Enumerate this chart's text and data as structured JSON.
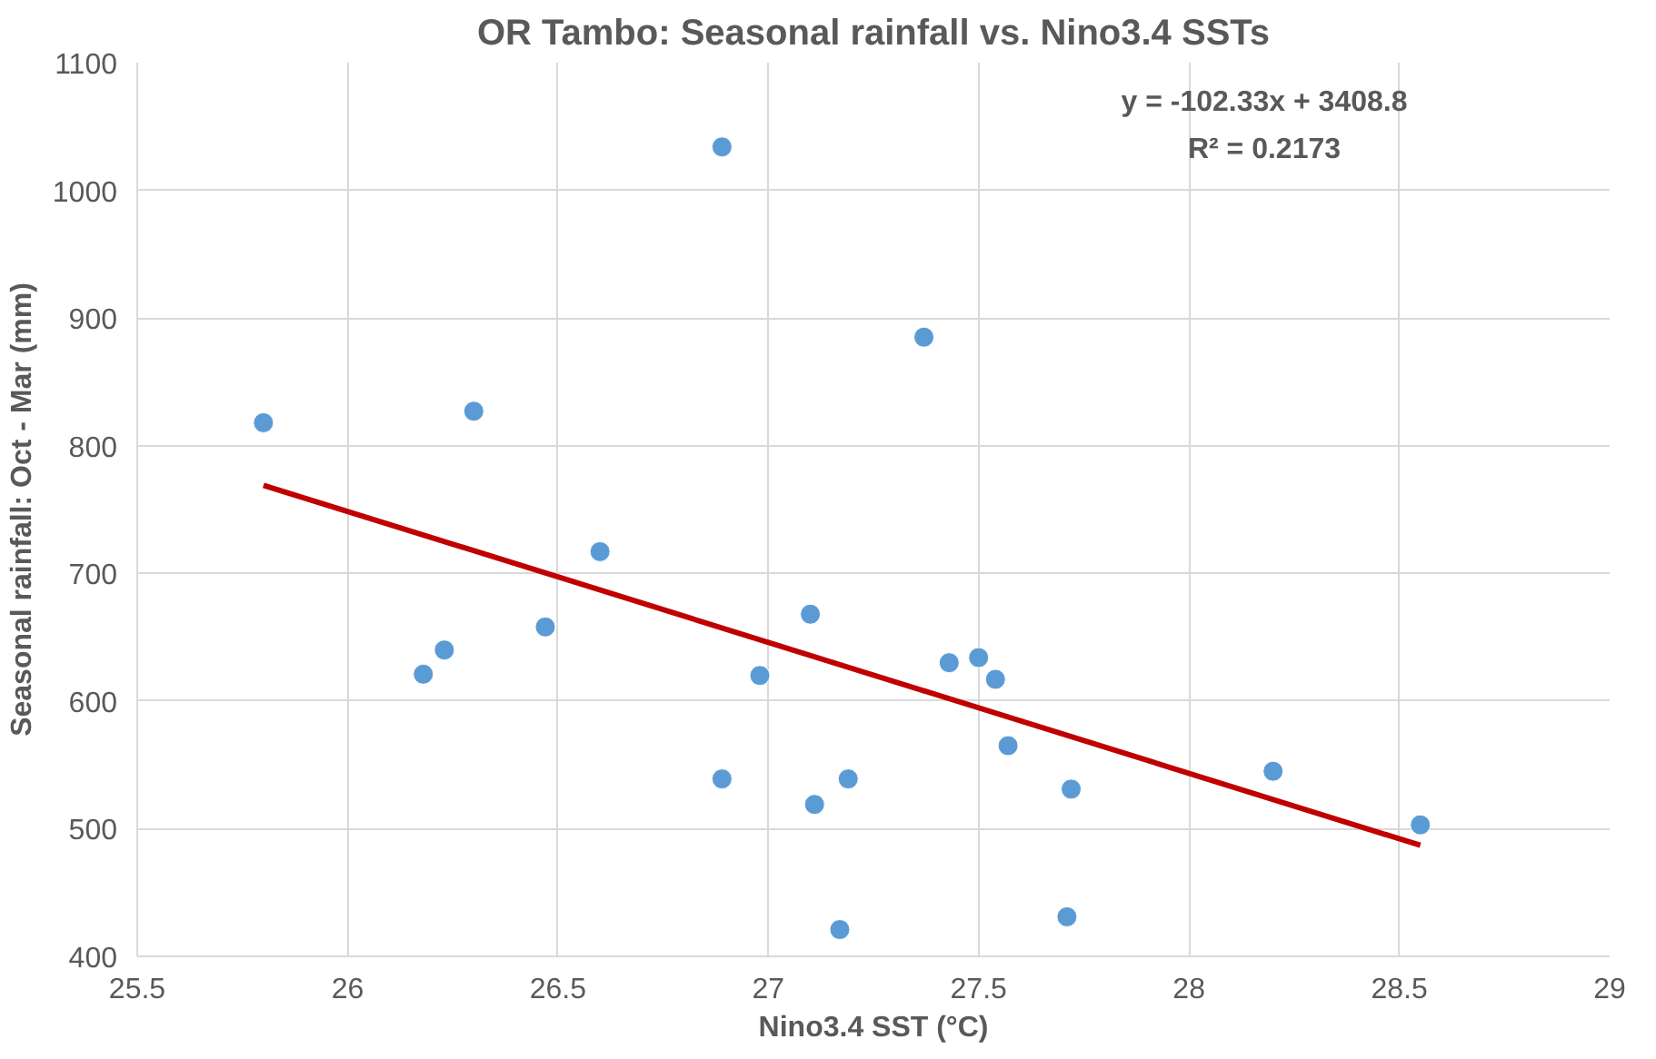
{
  "chart_data": {
    "type": "scatter",
    "title": "OR Tambo: Seasonal rainfall vs. Nino3.4 SSTs",
    "xlabel": "Nino3.4 SST (°C)",
    "ylabel": "Seasonal rainfall: Oct - Mar (mm)",
    "xlim": [
      25.5,
      29
    ],
    "xticks": [
      25.5,
      26,
      26.5,
      27,
      27.5,
      28,
      28.5,
      29
    ],
    "ylim": [
      400,
      1100
    ],
    "yticks": [
      400,
      500,
      600,
      700,
      800,
      900,
      1000,
      1100
    ],
    "grid": true,
    "annotations": [
      "y = -102.33x + 3408.8",
      "R² = 0.2173"
    ],
    "series": [
      {
        "marker": "circle",
        "color": "#5b9bd5",
        "x": [
          25.8,
          26.3,
          26.18,
          26.23,
          26.47,
          26.6,
          26.89,
          26.98,
          26.89,
          27.1,
          27.11,
          27.19,
          27.17,
          27.37,
          27.43,
          27.5,
          27.54,
          27.57,
          27.72,
          27.71,
          28.2,
          28.55
        ],
        "values": [
          818,
          827,
          621,
          640,
          658,
          717,
          1034,
          620,
          539,
          668,
          519,
          539,
          421,
          885,
          630,
          634,
          617,
          565,
          531,
          431,
          545,
          503
        ]
      },
      {
        "type": "line",
        "color": "#c00000",
        "line_style": "solid",
        "x": [
          25.8,
          28.55
        ],
        "values": [
          769,
          487
        ]
      }
    ]
  }
}
